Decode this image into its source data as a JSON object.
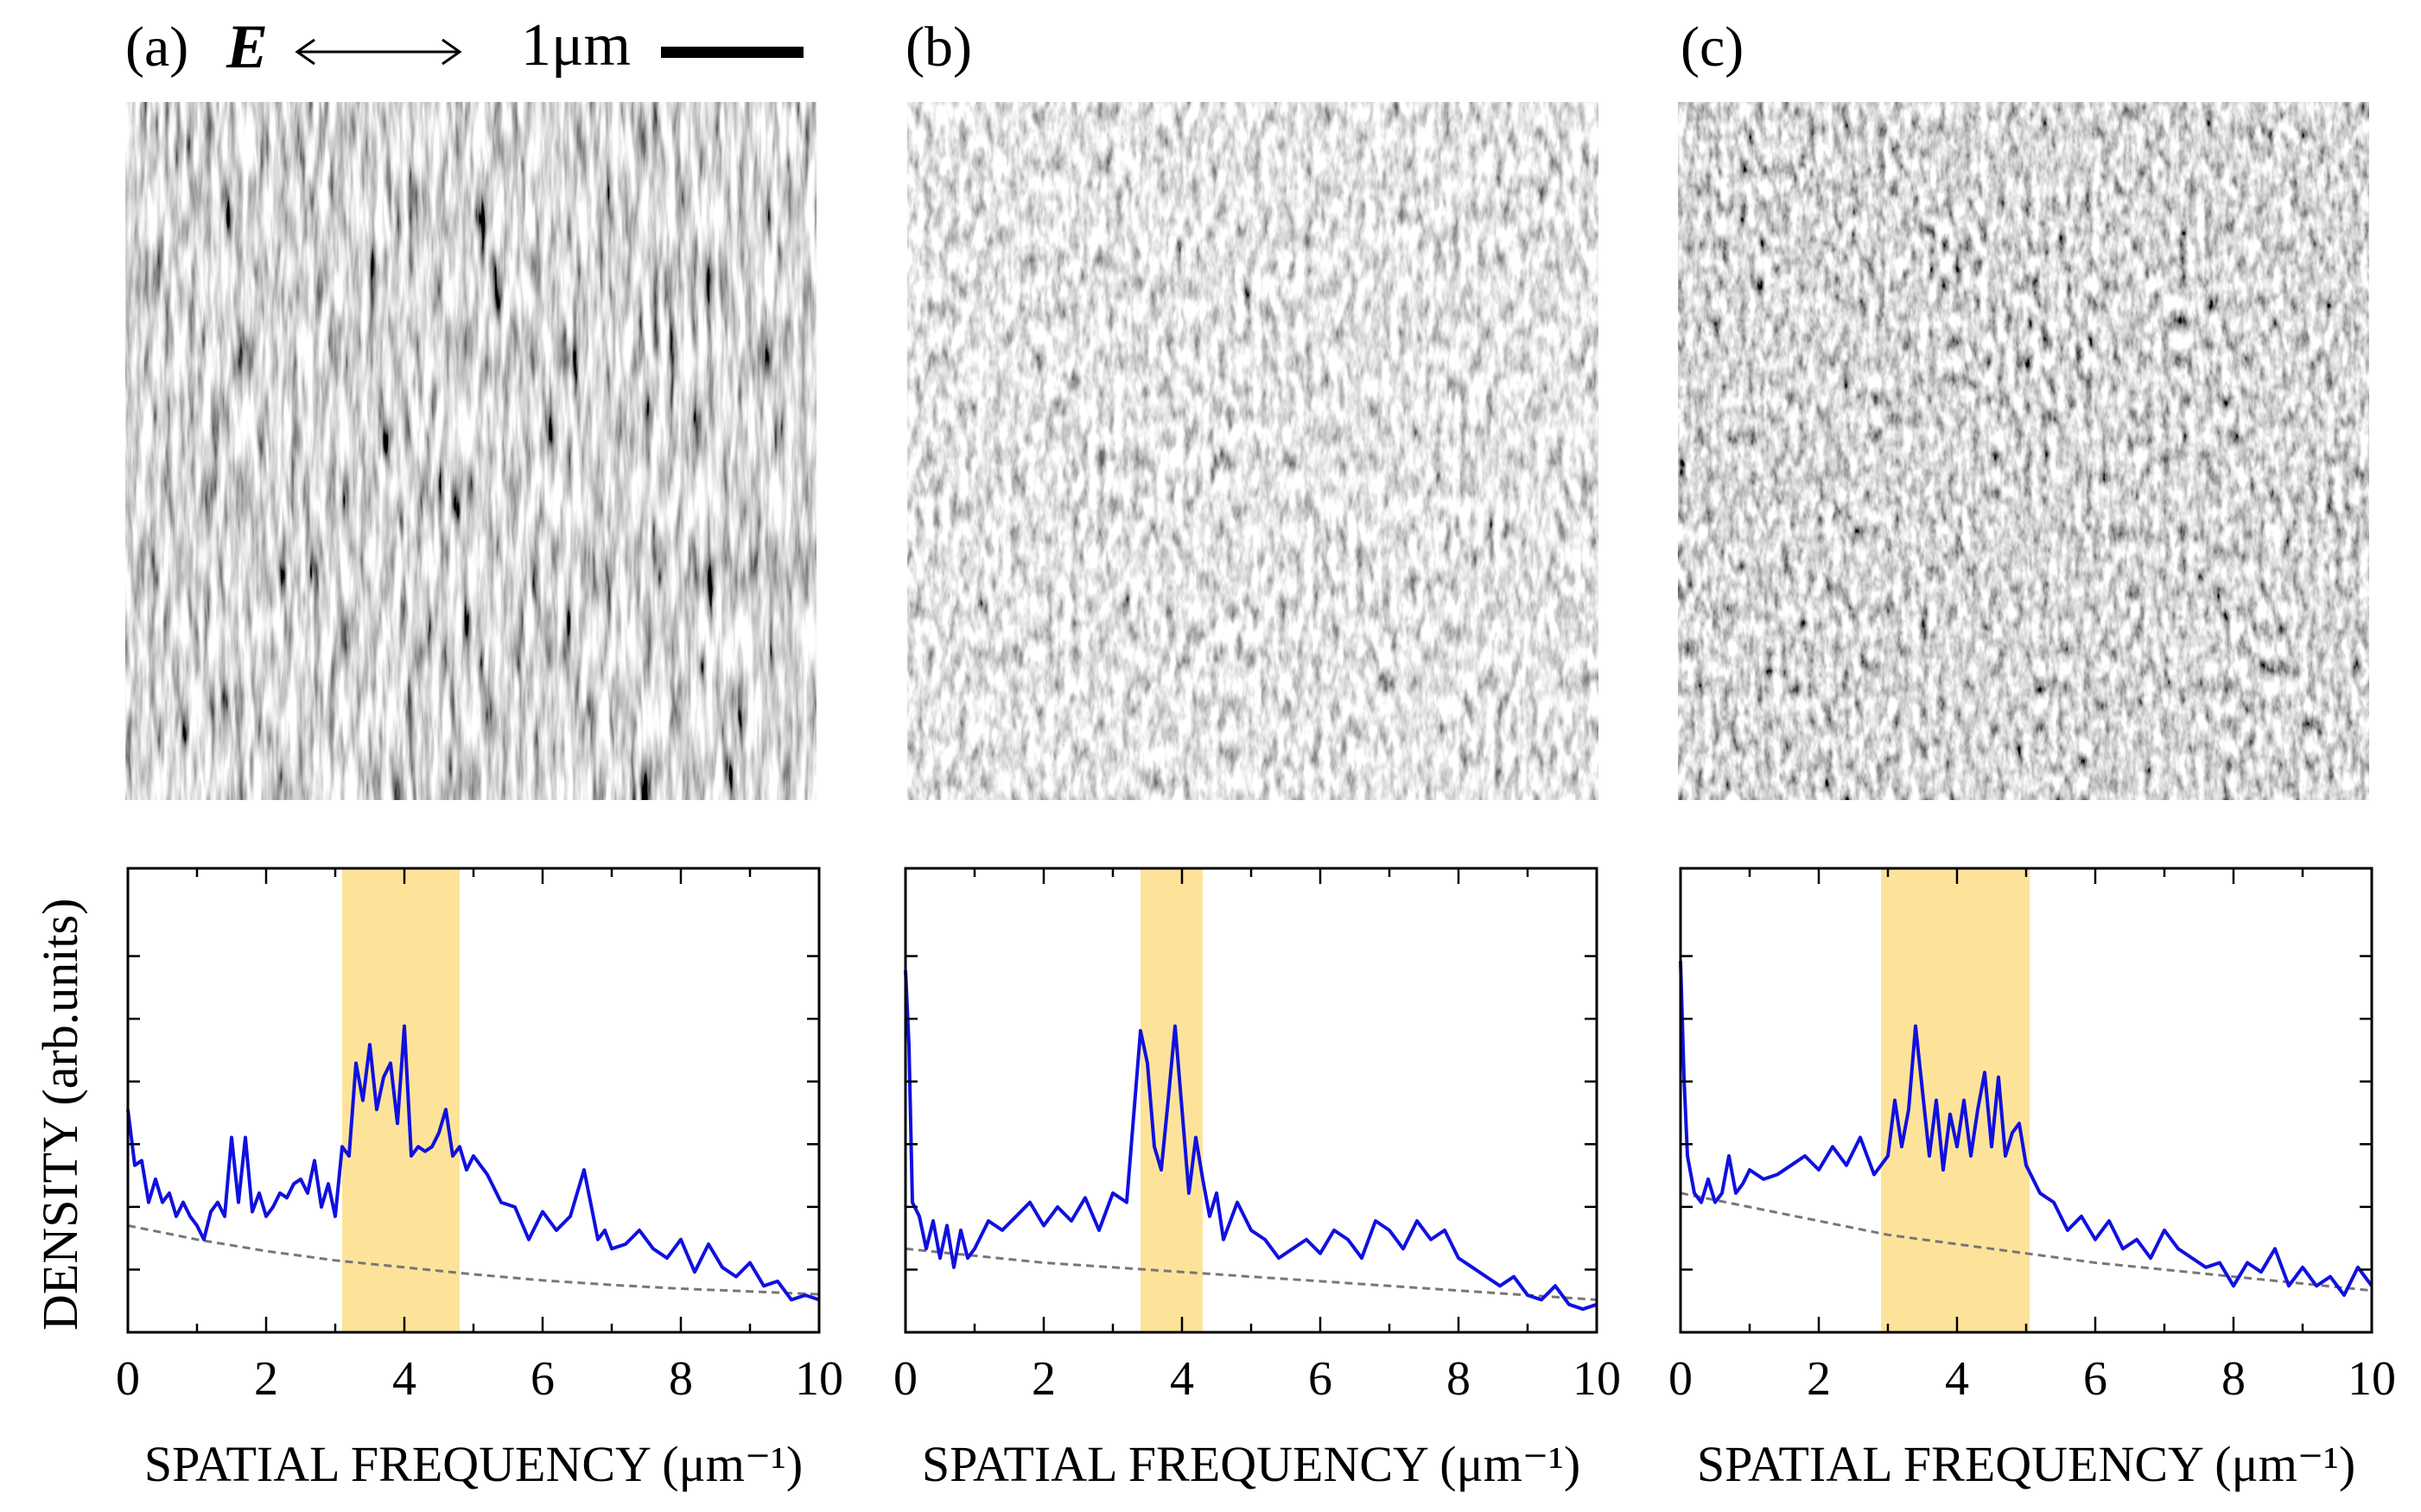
{
  "figure": {
    "panel_labels": [
      "(a)",
      "(b)",
      "(c)"
    ],
    "field_symbol": "E",
    "scale_bar_label": "1μm",
    "ylabel": "DENSITY (arb.units)",
    "colors": {
      "curve": "#1010e0",
      "band": "#fde39a",
      "baseline": "#777777"
    }
  },
  "chart_data": [
    {
      "type": "line",
      "panel": "(a)",
      "xlabel": "SPATIAL FREQUENCY (μm⁻¹)",
      "ylabel": "DENSITY (arb.units)",
      "xlim": [
        0,
        10
      ],
      "ylim": [
        0,
        1
      ],
      "xticks": [
        0,
        2,
        4,
        6,
        8,
        10
      ],
      "highlight_band": [
        3.1,
        4.8
      ],
      "series": [
        {
          "name": "density",
          "x": [
            0.0,
            0.1,
            0.2,
            0.3,
            0.4,
            0.5,
            0.6,
            0.7,
            0.8,
            0.9,
            1.0,
            1.1,
            1.2,
            1.3,
            1.4,
            1.5,
            1.6,
            1.7,
            1.8,
            1.9,
            2.0,
            2.1,
            2.2,
            2.3,
            2.4,
            2.5,
            2.6,
            2.7,
            2.8,
            2.9,
            3.0,
            3.1,
            3.2,
            3.3,
            3.4,
            3.5,
            3.6,
            3.7,
            3.8,
            3.9,
            4.0,
            4.1,
            4.2,
            4.3,
            4.4,
            4.5,
            4.6,
            4.7,
            4.8,
            4.9,
            5.0,
            5.2,
            5.4,
            5.6,
            5.8,
            6.0,
            6.2,
            6.4,
            6.6,
            6.8,
            6.9,
            7.0,
            7.2,
            7.4,
            7.6,
            7.8,
            8.0,
            8.2,
            8.4,
            8.6,
            8.8,
            9.0,
            9.2,
            9.4,
            9.6,
            9.8,
            10.0
          ],
          "y": [
            0.48,
            0.36,
            0.37,
            0.28,
            0.33,
            0.28,
            0.3,
            0.25,
            0.28,
            0.25,
            0.23,
            0.2,
            0.26,
            0.28,
            0.25,
            0.42,
            0.28,
            0.42,
            0.26,
            0.3,
            0.25,
            0.27,
            0.3,
            0.29,
            0.32,
            0.33,
            0.3,
            0.37,
            0.27,
            0.32,
            0.25,
            0.4,
            0.38,
            0.58,
            0.5,
            0.62,
            0.48,
            0.55,
            0.58,
            0.45,
            0.66,
            0.38,
            0.4,
            0.39,
            0.4,
            0.43,
            0.48,
            0.38,
            0.4,
            0.35,
            0.38,
            0.34,
            0.28,
            0.27,
            0.2,
            0.26,
            0.22,
            0.25,
            0.35,
            0.2,
            0.22,
            0.18,
            0.19,
            0.22,
            0.18,
            0.16,
            0.2,
            0.13,
            0.19,
            0.14,
            0.12,
            0.15,
            0.1,
            0.11,
            0.07,
            0.08,
            0.07
          ]
        },
        {
          "name": "baseline",
          "x": [
            0,
            1,
            2,
            3,
            4,
            5,
            6,
            7,
            8,
            9,
            10
          ],
          "y": [
            0.23,
            0.2,
            0.175,
            0.155,
            0.14,
            0.125,
            0.112,
            0.102,
            0.094,
            0.088,
            0.082
          ]
        }
      ]
    },
    {
      "type": "line",
      "panel": "(b)",
      "xlabel": "SPATIAL FREQUENCY (μm⁻¹)",
      "xlim": [
        0,
        10
      ],
      "ylim": [
        0,
        1
      ],
      "xticks": [
        0,
        2,
        4,
        6,
        8,
        10
      ],
      "highlight_band": [
        3.4,
        4.3
      ],
      "series": [
        {
          "name": "density",
          "x": [
            0.0,
            0.05,
            0.1,
            0.2,
            0.3,
            0.4,
            0.5,
            0.6,
            0.7,
            0.8,
            0.9,
            1.0,
            1.2,
            1.4,
            1.6,
            1.8,
            2.0,
            2.2,
            2.4,
            2.6,
            2.8,
            3.0,
            3.2,
            3.4,
            3.5,
            3.6,
            3.7,
            3.8,
            3.9,
            4.0,
            4.1,
            4.2,
            4.3,
            4.4,
            4.5,
            4.6,
            4.8,
            5.0,
            5.2,
            5.4,
            5.6,
            5.8,
            6.0,
            6.2,
            6.4,
            6.6,
            6.8,
            7.0,
            7.2,
            7.4,
            7.6,
            7.8,
            8.0,
            8.2,
            8.4,
            8.6,
            8.8,
            9.0,
            9.2,
            9.4,
            9.6,
            9.8,
            10.0
          ],
          "y": [
            0.78,
            0.62,
            0.28,
            0.25,
            0.18,
            0.24,
            0.16,
            0.23,
            0.14,
            0.22,
            0.16,
            0.18,
            0.24,
            0.22,
            0.25,
            0.28,
            0.23,
            0.27,
            0.24,
            0.29,
            0.22,
            0.3,
            0.28,
            0.65,
            0.58,
            0.4,
            0.35,
            0.5,
            0.66,
            0.48,
            0.3,
            0.42,
            0.33,
            0.25,
            0.3,
            0.2,
            0.28,
            0.22,
            0.2,
            0.16,
            0.18,
            0.2,
            0.17,
            0.22,
            0.2,
            0.16,
            0.24,
            0.22,
            0.18,
            0.24,
            0.2,
            0.22,
            0.16,
            0.14,
            0.12,
            0.1,
            0.12,
            0.08,
            0.07,
            0.1,
            0.06,
            0.05,
            0.06
          ]
        },
        {
          "name": "baseline",
          "x": [
            0,
            1,
            2,
            3,
            4,
            5,
            6,
            7,
            8,
            9,
            10
          ],
          "y": [
            0.18,
            0.165,
            0.15,
            0.14,
            0.13,
            0.12,
            0.11,
            0.1,
            0.09,
            0.08,
            0.07
          ]
        }
      ]
    },
    {
      "type": "line",
      "panel": "(c)",
      "xlabel": "SPATIAL FREQUENCY (μm⁻¹)",
      "xlim": [
        0,
        10
      ],
      "ylim": [
        0,
        1
      ],
      "xticks": [
        0,
        2,
        4,
        6,
        8,
        10
      ],
      "highlight_band": [
        2.9,
        5.05
      ],
      "series": [
        {
          "name": "density",
          "x": [
            0.0,
            0.05,
            0.1,
            0.2,
            0.3,
            0.4,
            0.5,
            0.6,
            0.7,
            0.8,
            0.9,
            1.0,
            1.2,
            1.4,
            1.6,
            1.8,
            2.0,
            2.2,
            2.4,
            2.6,
            2.8,
            3.0,
            3.1,
            3.2,
            3.3,
            3.4,
            3.5,
            3.6,
            3.7,
            3.8,
            3.9,
            4.0,
            4.1,
            4.2,
            4.3,
            4.4,
            4.5,
            4.6,
            4.7,
            4.8,
            4.9,
            5.0,
            5.2,
            5.4,
            5.6,
            5.8,
            6.0,
            6.2,
            6.4,
            6.6,
            6.8,
            7.0,
            7.2,
            7.4,
            7.6,
            7.8,
            8.0,
            8.2,
            8.4,
            8.6,
            8.8,
            9.0,
            9.2,
            9.4,
            9.6,
            9.8,
            10.0
          ],
          "y": [
            0.8,
            0.55,
            0.38,
            0.3,
            0.28,
            0.33,
            0.28,
            0.3,
            0.38,
            0.3,
            0.32,
            0.35,
            0.33,
            0.34,
            0.36,
            0.38,
            0.35,
            0.4,
            0.36,
            0.42,
            0.34,
            0.38,
            0.5,
            0.4,
            0.48,
            0.66,
            0.52,
            0.38,
            0.5,
            0.35,
            0.47,
            0.4,
            0.5,
            0.38,
            0.48,
            0.56,
            0.4,
            0.55,
            0.38,
            0.43,
            0.45,
            0.36,
            0.3,
            0.28,
            0.22,
            0.25,
            0.2,
            0.24,
            0.18,
            0.2,
            0.16,
            0.22,
            0.18,
            0.16,
            0.14,
            0.15,
            0.1,
            0.15,
            0.13,
            0.18,
            0.1,
            0.14,
            0.1,
            0.12,
            0.08,
            0.14,
            0.1
          ]
        },
        {
          "name": "baseline",
          "x": [
            0,
            1,
            2,
            3,
            4,
            5,
            6,
            7,
            8,
            9,
            10
          ],
          "y": [
            0.3,
            0.27,
            0.24,
            0.21,
            0.19,
            0.17,
            0.15,
            0.135,
            0.12,
            0.105,
            0.09
          ]
        }
      ]
    }
  ]
}
